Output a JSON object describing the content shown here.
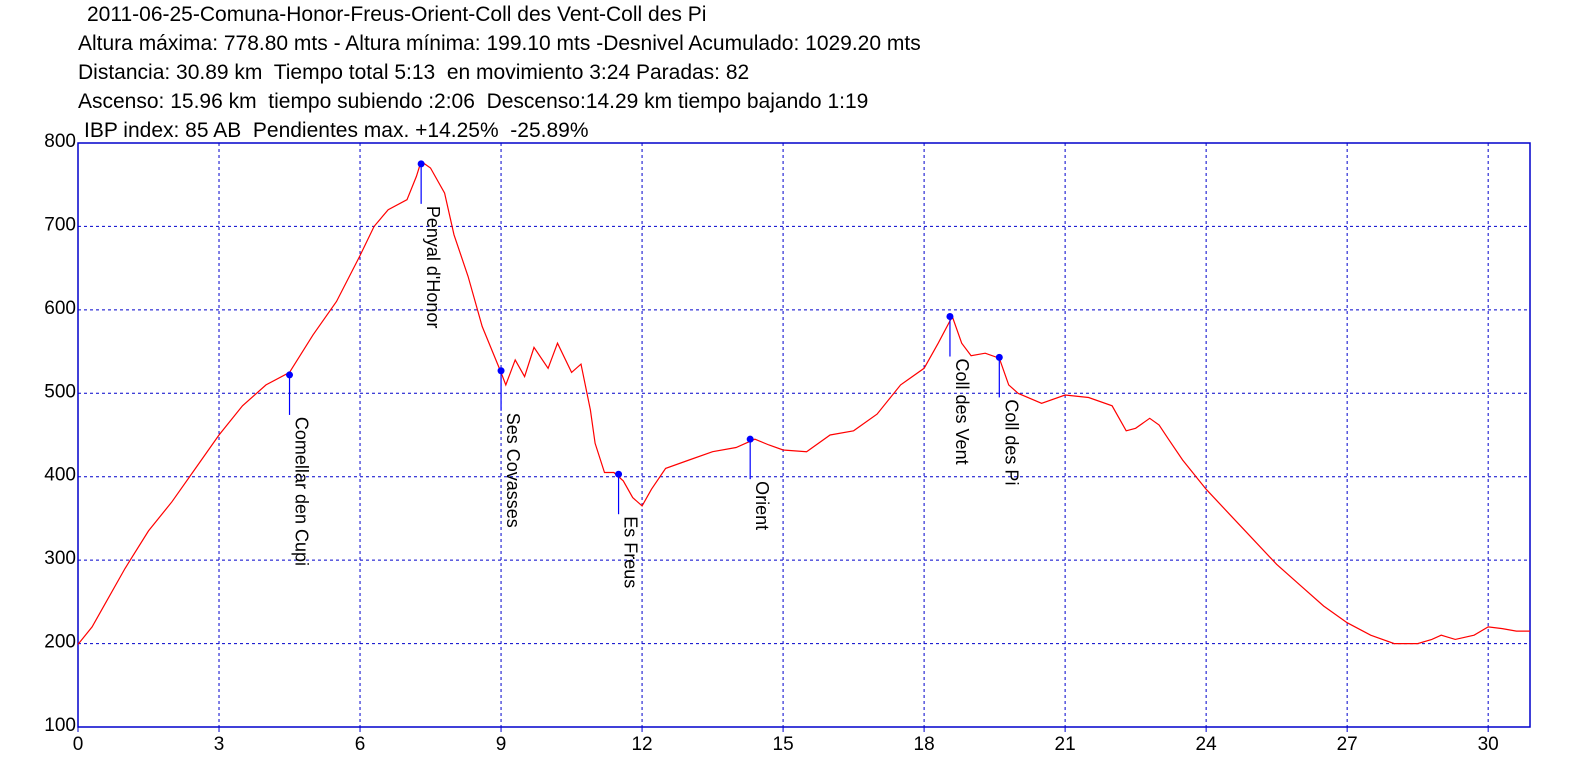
{
  "header": {
    "title": "2011-06-25-Comuna-Honor-Freus-Orient-Coll des Vent-Coll des Pi",
    "line2": "Altura máxima: 778.80 mts - Altura mínima: 199.10 mts -Desnivel Acumulado: 1029.20 mts",
    "line3": "Distancia: 30.89 km  Tiempo total 5:13  en movimiento 3:24 Paradas: 82",
    "line4": "Ascenso: 15.96 km  tiempo subiendo :2:06  Descenso:14.29 km tiempo bajando 1:19",
    "line5": "IBP index: 85 AB  Pendientes max. +14.25%  -25.89%"
  },
  "chart_data": {
    "type": "line",
    "xlim": [
      0,
      30.89
    ],
    "ylim": [
      100,
      800
    ],
    "x_ticks": [
      0,
      3,
      6,
      9,
      12,
      15,
      18,
      21,
      24,
      27,
      30
    ],
    "y_ticks": [
      100,
      200,
      300,
      400,
      500,
      600,
      700,
      800
    ],
    "grid": true,
    "colors": {
      "line": "#ff0000",
      "grid": "#0000cc",
      "marker": "#0000ff",
      "frame": "#0000cc"
    },
    "series": [
      {
        "x": [
          0,
          0.3,
          0.5,
          1,
          1.5,
          2,
          2.5,
          3,
          3.5,
          4,
          4.5,
          5,
          5.5,
          6,
          6.3,
          6.6,
          7,
          7.2,
          7.3,
          7.5,
          7.8,
          8,
          8.3,
          8.6,
          9,
          9.1,
          9.3,
          9.5,
          9.7,
          10,
          10.2,
          10.5,
          10.7,
          10.9,
          11,
          11.2,
          11.4,
          11.6,
          11.8,
          12,
          12.2,
          12.5,
          13,
          13.5,
          14,
          14.4,
          14.7,
          15,
          15.5,
          16,
          16.5,
          17,
          17.5,
          18,
          18.3,
          18.6,
          18.8,
          19,
          19.3,
          19.6,
          19.8,
          20,
          20.5,
          21,
          21.5,
          22,
          22.3,
          22.5,
          22.8,
          23,
          23.2,
          23.5,
          24,
          24.5,
          25,
          25.5,
          26,
          26.5,
          27,
          27.5,
          28,
          28.5,
          28.8,
          29,
          29.3,
          29.7,
          30,
          30.3,
          30.6,
          30.89
        ],
        "y": [
          199,
          220,
          240,
          290,
          335,
          370,
          410,
          450,
          485,
          510,
          525,
          570,
          610,
          665,
          700,
          720,
          732,
          760,
          778,
          770,
          740,
          690,
          640,
          580,
          525,
          510,
          540,
          520,
          555,
          530,
          560,
          525,
          535,
          480,
          440,
          405,
          405,
          395,
          375,
          365,
          385,
          410,
          420,
          430,
          435,
          445,
          438,
          432,
          430,
          450,
          455,
          475,
          510,
          530,
          560,
          592,
          560,
          545,
          548,
          542,
          510,
          500,
          488,
          498,
          495,
          485,
          455,
          458,
          470,
          462,
          445,
          420,
          385,
          355,
          325,
          295,
          270,
          245,
          225,
          210,
          200,
          200,
          205,
          210,
          205,
          210,
          220,
          218,
          215,
          215
        ]
      }
    ],
    "annotations": [
      {
        "label": "Comellar den Cupi",
        "x": 4.5,
        "y": 522
      },
      {
        "label": "Penyal d'Honor",
        "x": 7.3,
        "y": 775
      },
      {
        "label": "Ses Covasses",
        "x": 9.0,
        "y": 527
      },
      {
        "label": "Es Freus",
        "x": 11.5,
        "y": 403
      },
      {
        "label": "Orient",
        "x": 14.3,
        "y": 445
      },
      {
        "label": "Coll  des Vent",
        "x": 18.55,
        "y": 592
      },
      {
        "label": "Coll des Pi",
        "x": 19.6,
        "y": 543
      }
    ]
  }
}
